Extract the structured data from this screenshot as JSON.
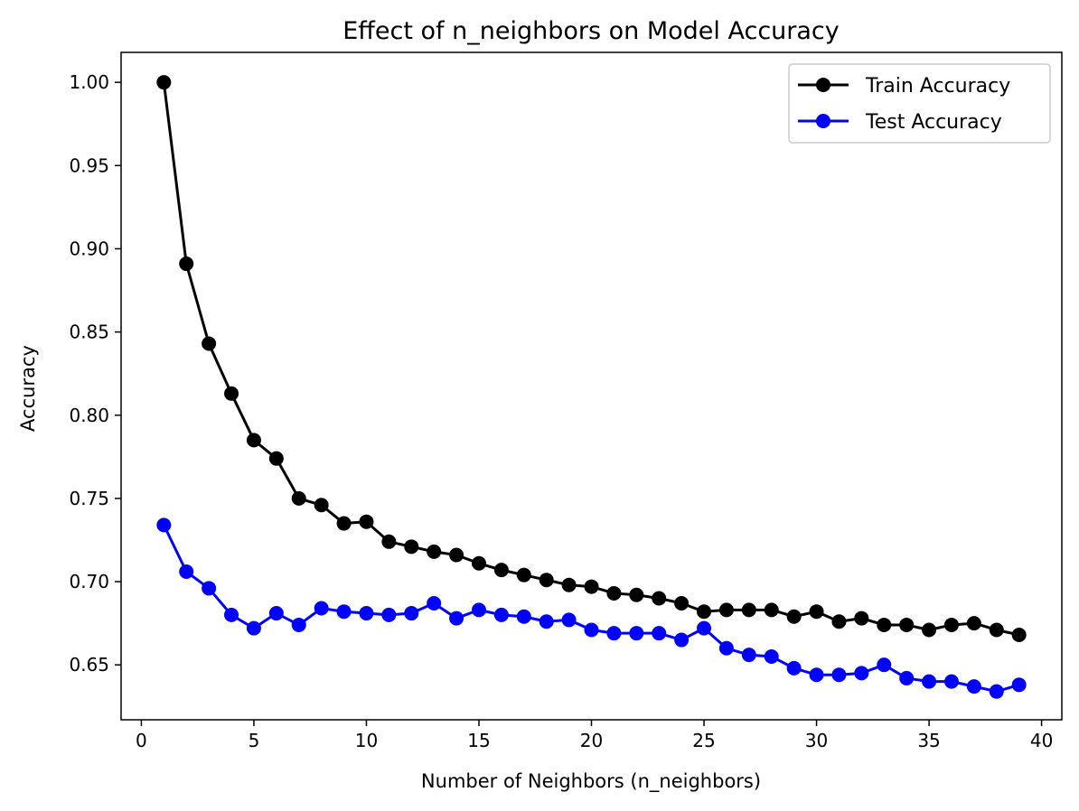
{
  "chart_data": {
    "type": "line",
    "title": "Effect of n_neighbors on Model Accuracy",
    "xlabel": "Number of Neighbors (n_neighbors)",
    "ylabel": "Accuracy",
    "xlim": [
      -0.9,
      40.9
    ],
    "ylim": [
      0.617,
      1.018
    ],
    "xticks": [
      0,
      5,
      10,
      15,
      20,
      25,
      30,
      35,
      40
    ],
    "yticks": [
      "0.65",
      "0.70",
      "0.75",
      "0.80",
      "0.85",
      "0.90",
      "0.95",
      "1.00"
    ],
    "grid": false,
    "legend_position": "top-right",
    "x": [
      1,
      2,
      3,
      4,
      5,
      6,
      7,
      8,
      9,
      10,
      11,
      12,
      13,
      14,
      15,
      16,
      17,
      18,
      19,
      20,
      21,
      22,
      23,
      24,
      25,
      26,
      27,
      28,
      29,
      30,
      31,
      32,
      33,
      34,
      35,
      36,
      37,
      38,
      39
    ],
    "series": [
      {
        "name": "Train Accuracy",
        "color": "#000000",
        "values": [
          1.0,
          0.891,
          0.843,
          0.813,
          0.785,
          0.774,
          0.75,
          0.746,
          0.735,
          0.736,
          0.724,
          0.721,
          0.718,
          0.716,
          0.711,
          0.707,
          0.704,
          0.701,
          0.698,
          0.697,
          0.693,
          0.692,
          0.69,
          0.687,
          0.682,
          0.683,
          0.683,
          0.683,
          0.679,
          0.682,
          0.676,
          0.678,
          0.674,
          0.674,
          0.671,
          0.674,
          0.675,
          0.671,
          0.668
        ]
      },
      {
        "name": "Test Accuracy",
        "color": "#0000ff",
        "values": [
          0.734,
          0.706,
          0.696,
          0.68,
          0.672,
          0.681,
          0.674,
          0.684,
          0.682,
          0.681,
          0.68,
          0.681,
          0.687,
          0.678,
          0.683,
          0.68,
          0.679,
          0.676,
          0.677,
          0.671,
          0.669,
          0.669,
          0.669,
          0.665,
          0.672,
          0.66,
          0.656,
          0.655,
          0.648,
          0.644,
          0.644,
          0.645,
          0.65,
          0.642,
          0.64,
          0.64,
          0.637,
          0.634,
          0.638
        ]
      }
    ]
  }
}
